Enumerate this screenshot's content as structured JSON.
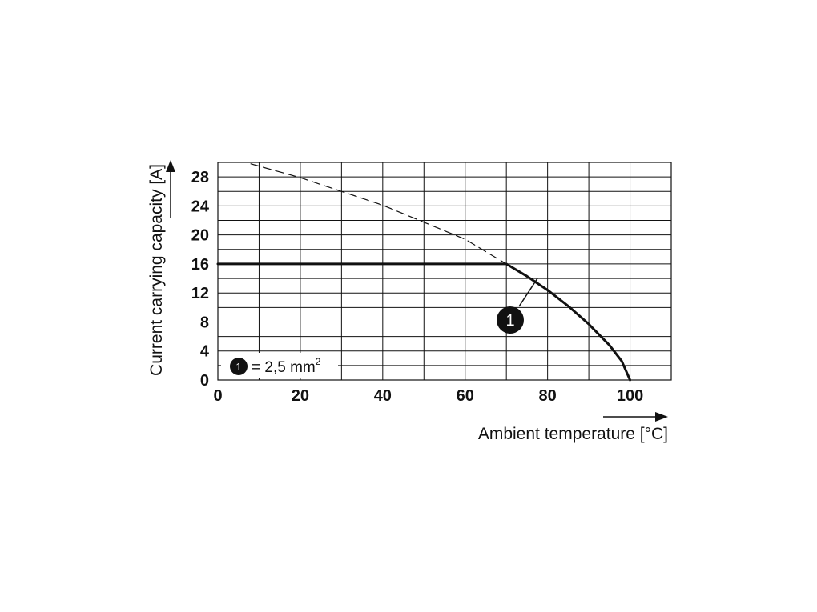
{
  "chart_data": {
    "type": "line",
    "xlabel": "Ambient temperature [°C]",
    "ylabel": "Current carrying capacity [A]",
    "xlim": [
      0,
      110
    ],
    "ylim": [
      0,
      30
    ],
    "x_ticks": [
      "0",
      "20",
      "40",
      "60",
      "80",
      "100"
    ],
    "y_ticks": [
      "0",
      "4",
      "8",
      "12",
      "16",
      "20",
      "24",
      "28"
    ],
    "grid": true,
    "series": [
      {
        "name": "1",
        "style": "solid",
        "x": [
          0,
          70,
          75,
          80,
          85,
          90,
          95,
          98,
          100
        ],
        "y": [
          16,
          16,
          14.3,
          12.4,
          10.2,
          7.7,
          4.8,
          2.6,
          0
        ]
      },
      {
        "style": "dashed",
        "x": [
          8,
          20,
          40,
          60,
          70
        ],
        "y": [
          29.8,
          27.9,
          24.1,
          19.4,
          16
        ]
      }
    ],
    "annotation": {
      "marker": "1",
      "legend_text": "= 2,5 mm",
      "legend_superscript": "2"
    }
  }
}
